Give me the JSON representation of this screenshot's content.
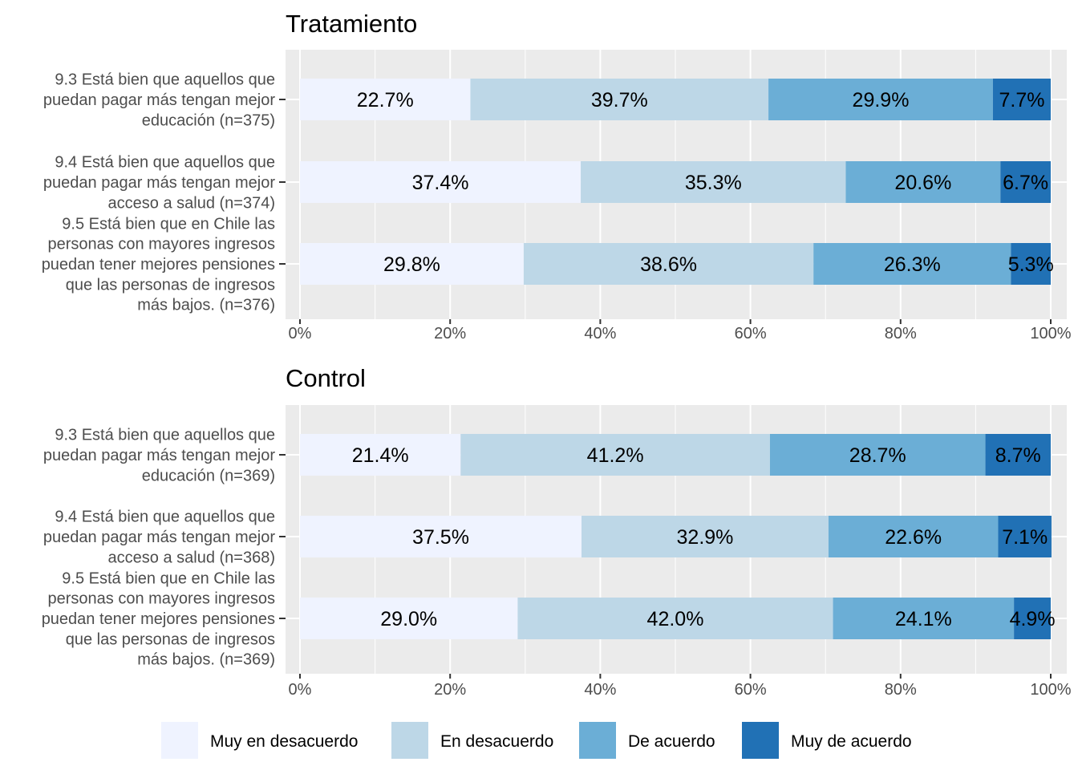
{
  "chart_data": {
    "type": "bar",
    "orientation": "horizontal",
    "stacked": "percent",
    "xlim": [
      0,
      100
    ],
    "x_ticks": [
      "0%",
      "20%",
      "40%",
      "60%",
      "80%",
      "100%"
    ],
    "x_tick_values": [
      0,
      20,
      40,
      60,
      80,
      100
    ],
    "grid": true,
    "legend_position": "bottom",
    "series": [
      {
        "name": "Muy en desacuerdo",
        "color": "#eff3ff"
      },
      {
        "name": "En desacuerdo",
        "color": "#bdd7e7"
      },
      {
        "name": "De acuerdo",
        "color": "#6baed6"
      },
      {
        "name": "Muy de acuerdo",
        "color": "#2171b5"
      }
    ],
    "panels": [
      {
        "title": "Tratamiento",
        "categories": [
          {
            "label_lines": [
              "9.3 Está bien que aquellos que",
              "puedan pagar más tengan mejor",
              "educación (n=375)"
            ],
            "values": [
              22.7,
              39.7,
              29.9,
              7.7
            ],
            "labels": [
              "22.7%",
              "39.7%",
              "29.9%",
              "7.7%"
            ]
          },
          {
            "label_lines": [
              "9.4 Está bien que aquellos que",
              "puedan pagar más tengan mejor",
              "acceso a salud (n=374)"
            ],
            "values": [
              37.4,
              35.3,
              20.6,
              6.7
            ],
            "labels": [
              "37.4%",
              "35.3%",
              "20.6%",
              "6.7%"
            ]
          },
          {
            "label_lines": [
              "9.5 Está bien que en Chile las",
              "personas con mayores ingresos",
              "puedan tener mejores pensiones",
              "que las personas de ingresos",
              "más bajos. (n=376)"
            ],
            "values": [
              29.8,
              38.6,
              26.3,
              5.3
            ],
            "labels": [
              "29.8%",
              "38.6%",
              "26.3%",
              "5.3%"
            ]
          }
        ]
      },
      {
        "title": "Control",
        "categories": [
          {
            "label_lines": [
              "9.3 Está bien que aquellos que",
              "puedan pagar más tengan mejor",
              "educación (n=369)"
            ],
            "values": [
              21.4,
              41.2,
              28.7,
              8.7
            ],
            "labels": [
              "21.4%",
              "41.2%",
              "28.7%",
              "8.7%"
            ]
          },
          {
            "label_lines": [
              "9.4 Está bien que aquellos que",
              "puedan pagar más tengan mejor",
              "acceso a salud (n=368)"
            ],
            "values": [
              37.5,
              32.9,
              22.6,
              7.1
            ],
            "labels": [
              "37.5%",
              "32.9%",
              "22.6%",
              "7.1%"
            ]
          },
          {
            "label_lines": [
              "9.5 Está bien que en Chile las",
              "personas con mayores ingresos",
              "puedan tener mejores pensiones",
              "que las personas de ingresos",
              "más bajos. (n=369)"
            ],
            "values": [
              29.0,
              42.0,
              24.1,
              4.9
            ],
            "labels": [
              "29.0%",
              "42.0%",
              "24.1%",
              "4.9%"
            ]
          }
        ]
      }
    ]
  }
}
